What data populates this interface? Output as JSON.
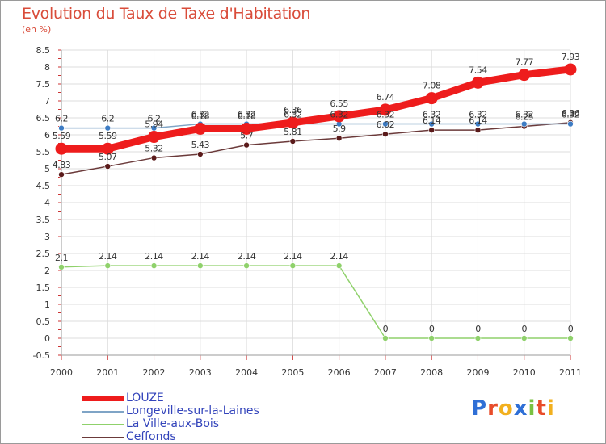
{
  "header": {
    "title": "Evolution du Taux de Taxe d'Habitation",
    "unit": "(en %)"
  },
  "brand": {
    "name": "Proxiti",
    "letters": [
      "P",
      "r",
      "o",
      "x",
      "i",
      "t",
      "i"
    ],
    "colors": [
      "#2f6fd6",
      "#e84c2a",
      "#f2b01e",
      "#2f6fd6",
      "#7ac142",
      "#e84c2a",
      "#f2b01e"
    ]
  },
  "chart_data": {
    "type": "line",
    "title": "Evolution du Taux de Taxe d'Habitation",
    "ylabel": "(en %)",
    "xlabel": "",
    "categories": [
      "2000",
      "2001",
      "2002",
      "2003",
      "2004",
      "2005",
      "2006",
      "2007",
      "2008",
      "2009",
      "2010",
      "2011"
    ],
    "ylim": [
      -0.5,
      8.5
    ],
    "yticks": [
      "-0.5",
      "0",
      "0.5",
      "1",
      "1.5",
      "2",
      "2.5",
      "3",
      "3.5",
      "4",
      "4.5",
      "5",
      "5.5",
      "6",
      "6.5",
      "7",
      "7.5",
      "8",
      "8.5"
    ],
    "grid": true,
    "legend_position": "bottom-left",
    "series": [
      {
        "name": "LOUZE",
        "color": "#ee1c1c",
        "marker": "#ee1c1c",
        "weight": "heavy",
        "values": [
          5.59,
          5.59,
          5.94,
          6.18,
          6.18,
          6.36,
          6.55,
          6.74,
          7.08,
          7.54,
          7.77,
          7.93
        ],
        "labels": [
          "5.59",
          "5.59",
          "5.94",
          "6.18",
          "6.18",
          "6.36",
          "6.55",
          "6.74",
          "7.08",
          "7.54",
          "7.77",
          "7.93"
        ]
      },
      {
        "name": "Longeville-sur-la-Laines",
        "color": "#7fa4c6",
        "marker": "#3d7cc4",
        "weight": "thin",
        "values": [
          6.2,
          6.2,
          6.2,
          6.32,
          6.32,
          6.32,
          6.32,
          6.32,
          6.32,
          6.32,
          6.32,
          6.32
        ],
        "labels": [
          "6.2",
          "6.2",
          "6.2",
          "6.32",
          "6.32",
          "6.32",
          "6.32",
          "6.32",
          "6.32",
          "6.32",
          "6.32",
          "6.32"
        ]
      },
      {
        "name": "La Ville-aux-Bois",
        "color": "#8fd16b",
        "marker": "#8fd16b",
        "weight": "thin",
        "values": [
          2.1,
          2.14,
          2.14,
          2.14,
          2.14,
          2.14,
          2.14,
          0,
          0,
          0,
          0,
          0
        ],
        "labels": [
          "2.1",
          "2.14",
          "2.14",
          "2.14",
          "2.14",
          "2.14",
          "2.14",
          "0",
          "0",
          "0",
          "0",
          "0"
        ]
      },
      {
        "name": "Ceffonds",
        "color": "#6b3a3a",
        "marker": "#5a1a1a",
        "weight": "thin",
        "values": [
          4.83,
          5.07,
          5.32,
          5.43,
          5.7,
          5.81,
          5.9,
          6.02,
          6.14,
          6.14,
          6.25,
          6.36
        ],
        "labels": [
          "4.83",
          "5.07",
          "5.32",
          "5.43",
          "5.7",
          "5.81",
          "5.9",
          "6.02",
          "6.14",
          "6.14",
          "6.25",
          "6.36"
        ]
      }
    ]
  }
}
